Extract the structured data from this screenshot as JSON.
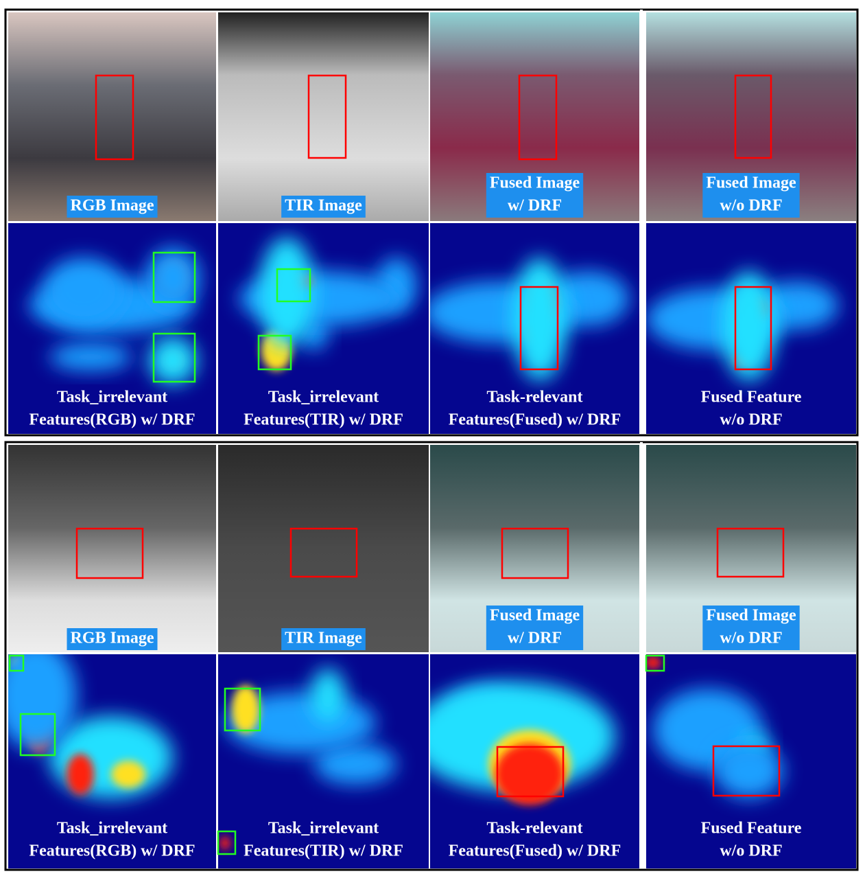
{
  "groups": [
    {
      "images": [
        {
          "lines": [
            "RGB Image"
          ]
        },
        {
          "lines": [
            "TIR Image"
          ]
        },
        {
          "lines": [
            "Fused Image",
            "w/ DRF"
          ]
        },
        {
          "lines": [
            "Fused Image",
            "w/o DRF"
          ]
        }
      ],
      "features": [
        {
          "lines": [
            "Task_irrelevant",
            "Features(RGB)  w/ DRF"
          ]
        },
        {
          "lines": [
            "Task_irrelevant",
            "Features(TIR)  w/ DRF"
          ]
        },
        {
          "lines": [
            "Task-relevant",
            "Features(Fused) w/ DRF"
          ]
        },
        {
          "lines": [
            "Fused Feature",
            "w/o DRF"
          ]
        }
      ]
    },
    {
      "images": [
        {
          "lines": [
            "RGB Image"
          ]
        },
        {
          "lines": [
            "TIR Image"
          ]
        },
        {
          "lines": [
            "Fused Image",
            "w/ DRF"
          ]
        },
        {
          "lines": [
            "Fused Image",
            "w/o DRF"
          ]
        }
      ],
      "features": [
        {
          "lines": [
            "Task_irrelevant",
            "Features(RGB)  w/ DRF"
          ]
        },
        {
          "lines": [
            "Task_irrelevant",
            "Features(TIR)  w/ DRF"
          ]
        },
        {
          "lines": [
            "Task-relevant",
            "Features(Fused) w/ DRF"
          ]
        },
        {
          "lines": [
            "Fused Feature",
            "w/o DRF"
          ]
        }
      ]
    }
  ]
}
